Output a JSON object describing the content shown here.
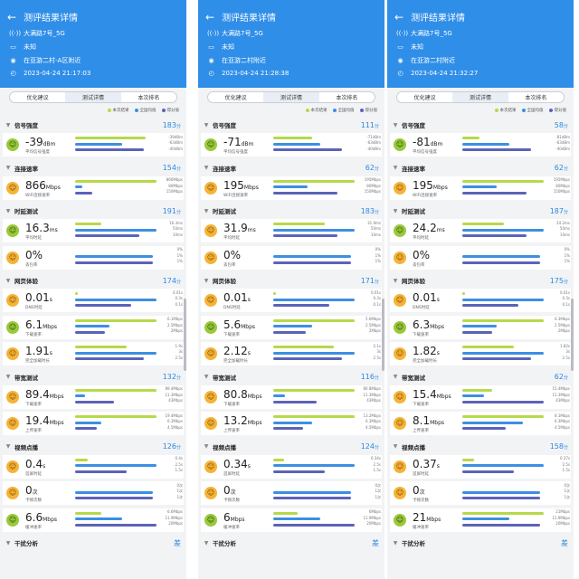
{
  "common": {
    "title": "测评结果详情",
    "tabs": [
      "优化建议",
      "测试详情",
      "本次排名"
    ],
    "legend": [
      "本次结果",
      "全国均值",
      "得分值"
    ],
    "colors": {
      "header": "#2f8ee8",
      "result": "#b6d94a",
      "national": "#3c8fe2",
      "score": "#5b63b8",
      "accent": "#2b88e0"
    },
    "icons": [
      "back-arrow-icon",
      "wifi-icon",
      "router-icon",
      "location-pin-icon",
      "clock-icon",
      "chevron-icon",
      "smiley-face-icon"
    ]
  },
  "panels": [
    {
      "wifi": "大满路7号_5G",
      "device": "未知",
      "location": "在亚游二村-A区附近",
      "time": "2023-04-24 21:17:03",
      "sections": [
        {
          "name": "信号强度",
          "score": "183",
          "rows": [
            {
              "value": "-39",
              "unit": "dBm",
              "label": "平均信号强度",
              "face": "good",
              "bar_vals": [
                "-39dBm",
                "-63dBm",
                "-40dBm"
              ],
              "fill": [
                0.82,
                0.55,
                0.8
              ]
            }
          ]
        },
        {
          "name": "连接速率",
          "score": "154",
          "rows": [
            {
              "value": "866",
              "unit": "Mbps",
              "label": "WiFi连接速率",
              "face": "warn",
              "bar_vals": [
                "866Mbps",
                "80Mbps",
                "150Mbps"
              ],
              "fill": [
                0.95,
                0.08,
                0.2
              ]
            }
          ]
        },
        {
          "name": "时延测试",
          "score": "191",
          "rows": [
            {
              "value": "16.3",
              "unit": "ms",
              "label": "平均时延",
              "face": "good",
              "bar_vals": [
                "16.3ms",
                "50ms",
                "10ms"
              ],
              "fill": [
                0.3,
                0.95,
                0.75
              ]
            },
            {
              "value": "0%",
              "unit": "",
              "label": "丢包率",
              "face": "warn",
              "bar_vals": [
                "0%",
                "1%",
                "1%"
              ],
              "fill": [
                0.0,
                0.9,
                0.9
              ]
            }
          ]
        },
        {
          "name": "网页体验",
          "score": "174",
          "rows": [
            {
              "value": "0.01",
              "unit": "s",
              "label": "DNS时延",
              "face": "warn",
              "bar_vals": [
                "0.01s",
                "0.3s",
                "0.1s"
              ],
              "fill": [
                0.03,
                0.95,
                0.65
              ]
            },
            {
              "value": "6.1",
              "unit": "Mbps",
              "label": "下载速率",
              "face": "good",
              "bar_vals": [
                "6.1Mbps",
                "2.5Mbps",
                "2Mbps"
              ],
              "fill": [
                0.95,
                0.4,
                0.35
              ]
            },
            {
              "value": "1.91",
              "unit": "s",
              "label": "完全加载时长",
              "face": "warn",
              "bar_vals": [
                "1.9s",
                "3s",
                "2.5s"
              ],
              "fill": [
                0.6,
                0.95,
                0.8
              ]
            }
          ]
        },
        {
          "name": "带宽测试",
          "score": "132",
          "rows": [
            {
              "value": "89.4",
              "unit": "Mbps",
              "label": "下载速率",
              "face": "warn",
              "bar_vals": [
                "89.4Mbps",
                "11.3Mbps",
                "43Mbps"
              ],
              "fill": [
                0.95,
                0.12,
                0.45
              ]
            },
            {
              "value": "19.4",
              "unit": "Mbps",
              "label": "上传速率",
              "face": "warn",
              "bar_vals": [
                "19.4Mbps",
                "6.3Mbps",
                "4.5Mbps"
              ],
              "fill": [
                0.95,
                0.3,
                0.25
              ]
            }
          ]
        },
        {
          "name": "视频点播",
          "score": "126",
          "rows": [
            {
              "value": "0.4",
              "unit": "s",
              "label": "首屏时延",
              "face": "warn",
              "bar_vals": [
                "0.4s",
                "2.5s",
                "1.5s"
              ],
              "fill": [
                0.15,
                0.95,
                0.6
              ]
            },
            {
              "value": "0",
              "unit": "次",
              "label": "卡顿次数",
              "face": "warn",
              "bar_vals": [
                "0次",
                "1次",
                "1次"
              ],
              "fill": [
                0.0,
                0.9,
                0.9
              ]
            },
            {
              "value": "6.6",
              "unit": "Mbps",
              "label": "缓冲速率",
              "face": "good",
              "bar_vals": [
                "6.6Mbps",
                "11.9Mbps",
                "20Mbps"
              ],
              "fill": [
                0.3,
                0.55,
                0.95
              ]
            }
          ]
        },
        {
          "name": "干扰分析",
          "score": "差",
          "rows": []
        }
      ]
    },
    {
      "wifi": "大满路7号_5G",
      "device": "未知",
      "location": "在亚游二村附近",
      "time": "2023-04-24 21:28:38",
      "sections": [
        {
          "name": "信号强度",
          "score": "111",
          "rows": [
            {
              "value": "-71",
              "unit": "dBm",
              "label": "平均信号强度",
              "face": "good",
              "bar_vals": [
                "-71dBm",
                "-63dBm",
                "-40dBm"
              ],
              "fill": [
                0.45,
                0.55,
                0.8
              ]
            }
          ]
        },
        {
          "name": "连接速率",
          "score": "62",
          "rows": [
            {
              "value": "195",
              "unit": "Mbps",
              "label": "WiFi连接速率",
              "face": "warn",
              "bar_vals": [
                "195Mbps",
                "80Mbps",
                "150Mbps"
              ],
              "fill": [
                0.95,
                0.4,
                0.75
              ]
            }
          ]
        },
        {
          "name": "时延测试",
          "score": "183",
          "rows": [
            {
              "value": "31.9",
              "unit": "ms",
              "label": "平均时延",
              "face": "warn",
              "bar_vals": [
                "31.9ms",
                "50ms",
                "10ms"
              ],
              "fill": [
                0.6,
                0.95,
                0.75
              ]
            },
            {
              "value": "0%",
              "unit": "",
              "label": "丢包率",
              "face": "warn",
              "bar_vals": [
                "0%",
                "1%",
                "1%"
              ],
              "fill": [
                0.0,
                0.9,
                0.9
              ]
            }
          ]
        },
        {
          "name": "网页体验",
          "score": "171",
          "rows": [
            {
              "value": "0.01",
              "unit": "s",
              "label": "DNS时延",
              "face": "warn",
              "bar_vals": [
                "0.01s",
                "0.3s",
                "0.1s"
              ],
              "fill": [
                0.03,
                0.95,
                0.65
              ]
            },
            {
              "value": "5.6",
              "unit": "Mbps",
              "label": "下载速率",
              "face": "good",
              "bar_vals": [
                "5.6Mbps",
                "2.5Mbps",
                "2Mbps"
              ],
              "fill": [
                0.95,
                0.45,
                0.38
              ]
            },
            {
              "value": "2.12",
              "unit": "s",
              "label": "完全加载时长",
              "face": "warn",
              "bar_vals": [
                "2.1s",
                "3s",
                "2.5s"
              ],
              "fill": [
                0.7,
                0.95,
                0.8
              ]
            }
          ]
        },
        {
          "name": "带宽测试",
          "score": "116",
          "rows": [
            {
              "value": "80.8",
              "unit": "Mbps",
              "label": "下载速率",
              "face": "warn",
              "bar_vals": [
                "80.8Mbps",
                "11.3Mbps",
                "43Mbps"
              ],
              "fill": [
                0.95,
                0.14,
                0.5
              ]
            },
            {
              "value": "13.2",
              "unit": "Mbps",
              "label": "上传速率",
              "face": "warn",
              "bar_vals": [
                "13.2Mbps",
                "6.3Mbps",
                "4.5Mbps"
              ],
              "fill": [
                0.95,
                0.45,
                0.35
              ]
            }
          ]
        },
        {
          "name": "视频点播",
          "score": "124",
          "rows": [
            {
              "value": "0.34",
              "unit": "s",
              "label": "首屏时延",
              "face": "warn",
              "bar_vals": [
                "0.34s",
                "2.5s",
                "1.5s"
              ],
              "fill": [
                0.13,
                0.95,
                0.6
              ]
            },
            {
              "value": "0",
              "unit": "次",
              "label": "卡顿次数",
              "face": "warn",
              "bar_vals": [
                "0次",
                "1次",
                "1次"
              ],
              "fill": [
                0.0,
                0.9,
                0.9
              ]
            },
            {
              "value": "6",
              "unit": "Mbps",
              "label": "缓冲速率",
              "face": "good",
              "bar_vals": [
                "6Mbps",
                "11.9Mbps",
                "20Mbps"
              ],
              "fill": [
                0.28,
                0.55,
                0.95
              ]
            }
          ]
        },
        {
          "name": "干扰分析",
          "score": "差",
          "rows": []
        }
      ]
    },
    {
      "wifi": "大满路7号_5G",
      "device": "未知",
      "location": "在亚游二村附近",
      "time": "2023-04-24 21:32:27",
      "sections": [
        {
          "name": "信号强度",
          "score": "58",
          "rows": [
            {
              "value": "-81",
              "unit": "dBm",
              "label": "平均信号强度",
              "face": "good",
              "bar_vals": [
                "-81dBm",
                "-63dBm",
                "-40dBm"
              ],
              "fill": [
                0.2,
                0.55,
                0.8
              ]
            }
          ]
        },
        {
          "name": "连接速率",
          "score": "62",
          "rows": [
            {
              "value": "195",
              "unit": "Mbps",
              "label": "WiFi连接速率",
              "face": "warn",
              "bar_vals": [
                "195Mbps",
                "80Mbps",
                "150Mbps"
              ],
              "fill": [
                0.95,
                0.4,
                0.75
              ]
            }
          ]
        },
        {
          "name": "时延测试",
          "score": "187",
          "rows": [
            {
              "value": "24.2",
              "unit": "ms",
              "label": "平均时延",
              "face": "good",
              "bar_vals": [
                "24.2ms",
                "50ms",
                "10ms"
              ],
              "fill": [
                0.48,
                0.95,
                0.75
              ]
            },
            {
              "value": "0%",
              "unit": "",
              "label": "丢包率",
              "face": "warn",
              "bar_vals": [
                "0%",
                "1%",
                "1%"
              ],
              "fill": [
                0.0,
                0.9,
                0.9
              ]
            }
          ]
        },
        {
          "name": "网页体验",
          "score": "175",
          "rows": [
            {
              "value": "0.01",
              "unit": "s",
              "label": "DNS时延",
              "face": "warn",
              "bar_vals": [
                "0.01s",
                "0.3s",
                "0.1s"
              ],
              "fill": [
                0.03,
                0.95,
                0.65
              ]
            },
            {
              "value": "6.3",
              "unit": "Mbps",
              "label": "下载速率",
              "face": "good",
              "bar_vals": [
                "6.3Mbps",
                "2.5Mbps",
                "2Mbps"
              ],
              "fill": [
                0.95,
                0.4,
                0.35
              ]
            },
            {
              "value": "1.82",
              "unit": "s",
              "label": "完全加载时长",
              "face": "warn",
              "bar_vals": [
                "1.82s",
                "3s",
                "2.5s"
              ],
              "fill": [
                0.6,
                0.95,
                0.8
              ]
            }
          ]
        },
        {
          "name": "带宽测试",
          "score": "62",
          "rows": [
            {
              "value": "15.4",
              "unit": "Mbps",
              "label": "下载速率",
              "face": "warn",
              "bar_vals": [
                "15.4Mbps",
                "11.3Mbps",
                "43Mbps"
              ],
              "fill": [
                0.35,
                0.25,
                0.95
              ]
            },
            {
              "value": "8.1",
              "unit": "Mbps",
              "label": "上传速率",
              "face": "warn",
              "bar_vals": [
                "8.1Mbps",
                "6.3Mbps",
                "4.5Mbps"
              ],
              "fill": [
                0.95,
                0.7,
                0.5
              ]
            }
          ]
        },
        {
          "name": "视频点播",
          "score": "158",
          "rows": [
            {
              "value": "0.37",
              "unit": "s",
              "label": "首屏时延",
              "face": "warn",
              "bar_vals": [
                "0.37s",
                "2.5s",
                "1.5s"
              ],
              "fill": [
                0.14,
                0.95,
                0.6
              ]
            },
            {
              "value": "0",
              "unit": "次",
              "label": "卡顿次数",
              "face": "warn",
              "bar_vals": [
                "0次",
                "1次",
                "1次"
              ],
              "fill": [
                0.0,
                0.9,
                0.9
              ]
            },
            {
              "value": "21",
              "unit": "Mbps",
              "label": "缓冲速率",
              "face": "good",
              "bar_vals": [
                "21Mbps",
                "11.9Mbps",
                "20Mbps"
              ],
              "fill": [
                0.95,
                0.55,
                0.9
              ]
            }
          ]
        },
        {
          "name": "干扰分析",
          "score": "差",
          "rows": []
        }
      ]
    }
  ]
}
